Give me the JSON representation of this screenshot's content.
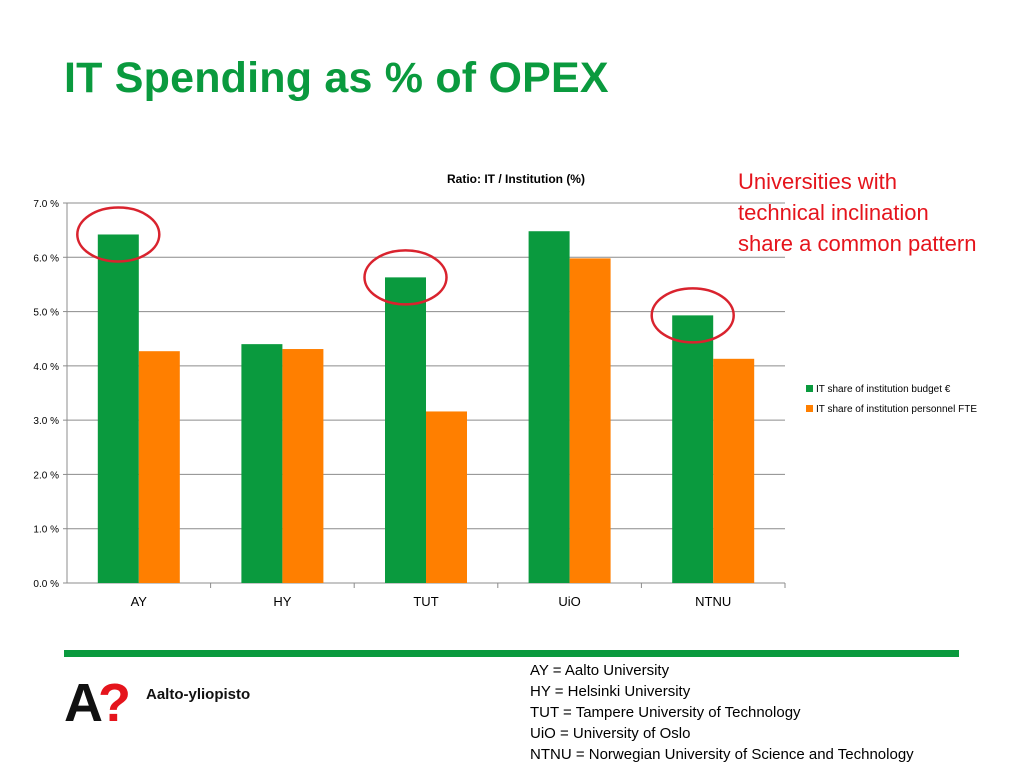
{
  "slide": {
    "title": "IT Spending as % of OPEX",
    "callout": "Universities with technical inclination share a common pattern",
    "logo_text": "Aalto-yliopisto",
    "logo_mark": "A?",
    "abbreviations": [
      "AY = Aalto University",
      "HY = Helsinki University",
      "TUT = Tampere University of Technology",
      "UiO = University of Oslo",
      "NTNU = Norwegian University of Science and Technology"
    ]
  },
  "colors": {
    "title": "#0a9a3e",
    "callout": "#e5141c",
    "series_budget": "#0a9a3e",
    "series_personnel": "#ff7f00",
    "highlight_circle": "#d9232e"
  },
  "chart_data": {
    "type": "bar",
    "title": "Ratio: IT / Institution (%)",
    "xlabel": "",
    "ylabel": "",
    "categories": [
      "AY",
      "HY",
      "TUT",
      "UiO",
      "NTNU"
    ],
    "series": [
      {
        "name": "IT share of institution budget €",
        "values": [
          6.42,
          4.4,
          5.63,
          6.48,
          4.93
        ]
      },
      {
        "name": "IT share of institution personnel FTE",
        "values": [
          4.27,
          4.31,
          3.16,
          5.98,
          4.13
        ]
      }
    ],
    "ylim": [
      0,
      7
    ],
    "yticks": [
      0,
      1,
      2,
      3,
      4,
      5,
      6,
      7
    ],
    "ytick_labels": [
      "0.0 %",
      "1.0 %",
      "2.0 %",
      "3.0 %",
      "4.0 %",
      "5.0 %",
      "6.0 %",
      "7.0 %"
    ],
    "grid": true,
    "legend_position": "right",
    "highlighted_categories": [
      "AY",
      "TUT",
      "NTNU"
    ]
  }
}
